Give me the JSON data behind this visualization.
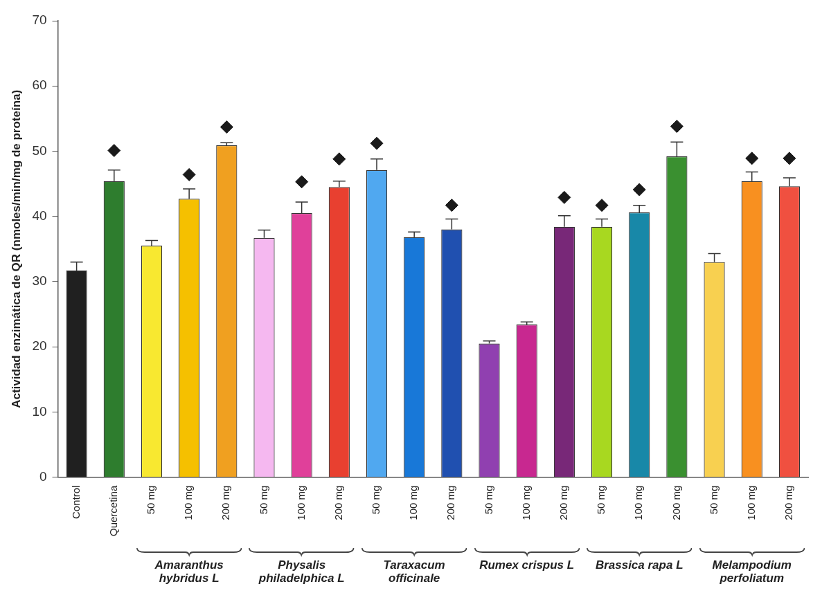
{
  "chart_data": {
    "type": "bar",
    "ylabel": "Actividad enzimática de QR (nmoles/min/mg de proteína)",
    "categories": [
      "Control",
      "Quercetina",
      "50 mg",
      "100 mg",
      "200 mg",
      "50 mg",
      "100 mg",
      "200 mg",
      "50 mg",
      "100 mg",
      "200 mg",
      "50 mg",
      "100 mg",
      "200 mg",
      "50 mg",
      "100 mg",
      "200 mg",
      "50 mg",
      "100 mg",
      "200 mg"
    ],
    "series": [
      {
        "colors": [
          "#202020",
          "#2e7d2e",
          "#f8e830",
          "#f5c000",
          "#f0a020",
          "#f5b8f0",
          "#e0409a",
          "#e84030",
          "#50a8f0",
          "#1878d8",
          "#2050b0",
          "#9040b0",
          "#c82890",
          "#782878",
          "#a8d820",
          "#1888a8",
          "#3a9030",
          "#f8d050",
          "#f89020",
          "#f05040"
        ],
        "values": [
          31.7,
          45.4,
          35.5,
          42.7,
          50.9,
          36.7,
          40.5,
          44.5,
          47.1,
          36.8,
          38.0,
          20.5,
          23.4,
          38.4,
          38.4,
          40.6,
          49.2,
          33.0,
          45.4,
          44.6
        ],
        "errors": [
          1.3,
          1.7,
          0.8,
          1.5,
          0.4,
          1.2,
          1.7,
          0.9,
          1.7,
          0.8,
          1.6,
          0.4,
          0.4,
          1.7,
          1.2,
          1.1,
          2.2,
          1.3,
          1.4,
          1.3
        ]
      },
      {
        "type": "scatter",
        "color": "#1a1a1a",
        "values": [
          null,
          50.1,
          null,
          46.4,
          53.7,
          null,
          45.3,
          48.8,
          51.2,
          null,
          41.7,
          null,
          null,
          42.9,
          41.7,
          44.1,
          53.8,
          null,
          48.9,
          48.9
        ]
      }
    ],
    "marker": "diamond",
    "ylim": [
      0,
      70
    ],
    "yticks": [
      0,
      10,
      20,
      30,
      40,
      50,
      60,
      70
    ],
    "grid": false,
    "legend": false,
    "annotations": [
      "Amaranthus hybridus L",
      "Physalis philadelphica L",
      "Taraxacum officinale",
      "Rumex crispus L",
      "Brassica rapa L",
      "Melampodium perfoliatum"
    ]
  }
}
